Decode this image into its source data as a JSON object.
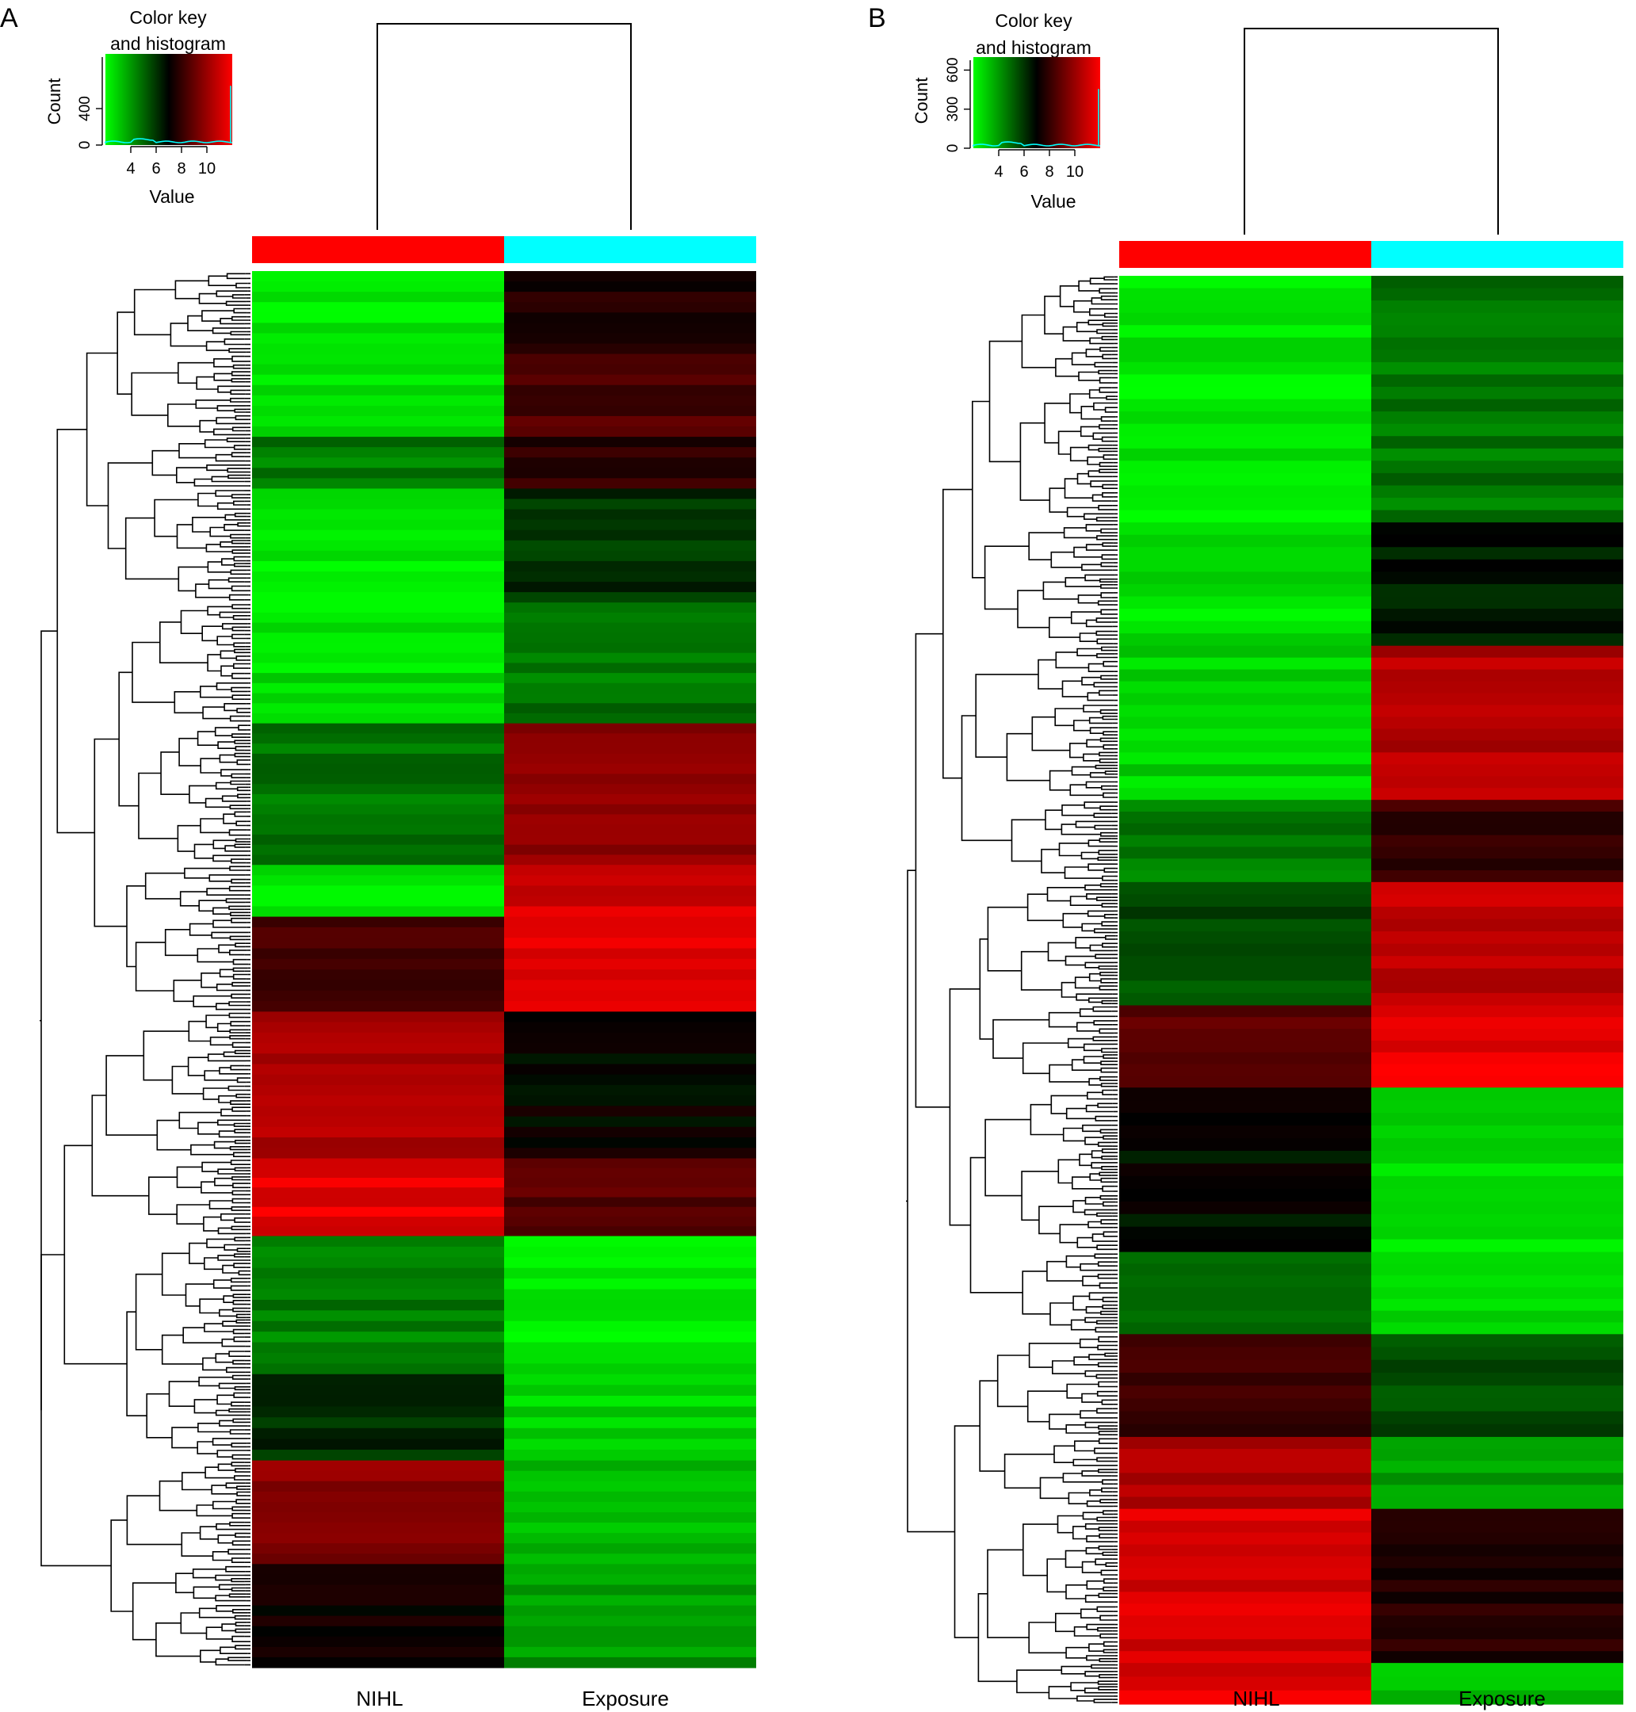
{
  "colors": {
    "low": "#00ff00",
    "mid": "#000000",
    "high": "#ff0000",
    "nihl_bar": "#ff0000",
    "exposure_bar": "#00ffff",
    "histogram_line": "#00ffff"
  },
  "chart_data": [
    {
      "type": "heatmap",
      "panel_label": "A",
      "columns": [
        "NIHL",
        "Exposure"
      ],
      "column_colors": [
        "#ff0000",
        "#00ffff"
      ],
      "color_key": {
        "title_line1": "Color key",
        "title_line2": "and histogram",
        "xlabel": "Value",
        "ylabel": "Count",
        "x_ticks": [
          "4",
          "6",
          "8",
          "10"
        ],
        "y_ticks": [
          "0",
          "400"
        ],
        "xlim": [
          2,
          12
        ],
        "ylim": [
          0,
          1000
        ]
      },
      "row_blocks": [
        {
          "rows": 48,
          "values": [
            2.5,
            7.6
          ]
        },
        {
          "rows": 48,
          "values": [
            2.6,
            8.5
          ]
        },
        {
          "rows": 30,
          "values": [
            4.6,
            7.9
          ]
        },
        {
          "rows": 66,
          "values": [
            2.5,
            6.0
          ]
        },
        {
          "rows": 70,
          "values": [
            2.6,
            4.7
          ]
        },
        {
          "rows": 82,
          "values": [
            4.7,
            9.9
          ]
        },
        {
          "rows": 30,
          "values": [
            2.6,
            11.2
          ]
        },
        {
          "rows": 55,
          "values": [
            8.2,
            11.5
          ]
        },
        {
          "rows": 85,
          "values": [
            10.3,
            7.0
          ]
        },
        {
          "rows": 45,
          "values": [
            11.5,
            8.8
          ]
        },
        {
          "rows": 80,
          "values": [
            4.5,
            2.5
          ]
        },
        {
          "rows": 50,
          "values": [
            6.2,
            2.8
          ]
        },
        {
          "rows": 60,
          "values": [
            9.6,
            3.2
          ]
        },
        {
          "rows": 60,
          "values": [
            7.1,
            4.0
          ]
        }
      ]
    },
    {
      "type": "heatmap",
      "panel_label": "B",
      "columns": [
        "NIHL",
        "Exposure"
      ],
      "column_colors": [
        "#ff0000",
        "#00ffff"
      ],
      "color_key": {
        "title_line1": "Color key",
        "title_line2": "and histogram",
        "xlabel": "Value",
        "ylabel": "Count",
        "x_ticks": [
          "4",
          "6",
          "8",
          "10"
        ],
        "y_ticks": [
          "0",
          "300",
          "600"
        ],
        "xlim": [
          2,
          12
        ],
        "ylim": [
          0,
          700
        ]
      },
      "row_blocks": [
        {
          "rows": 120,
          "values": [
            2.4,
            4.7
          ]
        },
        {
          "rows": 60,
          "values": [
            2.6,
            6.5
          ]
        },
        {
          "rows": 75,
          "values": [
            2.8,
            10.5
          ]
        },
        {
          "rows": 40,
          "values": [
            4.5,
            8.0
          ]
        },
        {
          "rows": 60,
          "values": [
            5.5,
            10.8
          ]
        },
        {
          "rows": 40,
          "values": [
            8.9,
            11.6
          ]
        },
        {
          "rows": 80,
          "values": [
            6.8,
            2.7
          ]
        },
        {
          "rows": 40,
          "values": [
            4.8,
            2.6
          ]
        },
        {
          "rows": 50,
          "values": [
            8.3,
            5.5
          ]
        },
        {
          "rows": 35,
          "values": [
            10.6,
            3.7
          ]
        },
        {
          "rows": 75,
          "values": [
            11.2,
            7.6
          ]
        },
        {
          "rows": 20,
          "values": [
            11.4,
            3.2
          ]
        }
      ]
    }
  ]
}
